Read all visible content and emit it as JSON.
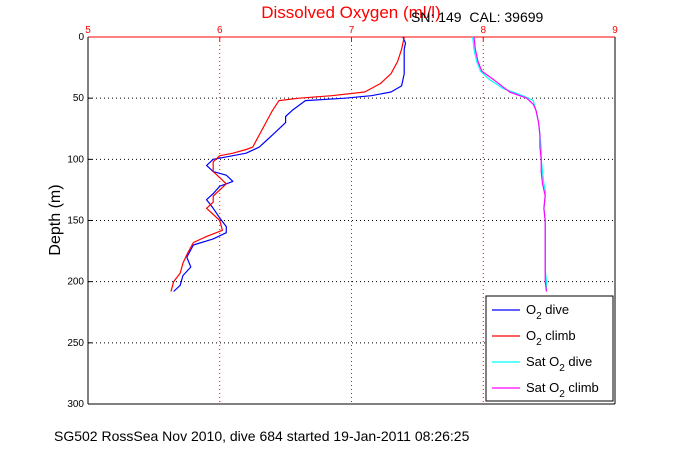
{
  "chart_data": {
    "type": "line",
    "title": "Dissolved Oxygen (ml/l)",
    "annotation": "SN: 149  CAL: 39699",
    "ylabel": "Depth (m)",
    "xlim": [
      5,
      9
    ],
    "ylim": [
      300,
      0
    ],
    "x_ticks": [
      "5",
      "6",
      "7",
      "8",
      "9"
    ],
    "y_ticks": [
      "0",
      "50",
      "100",
      "150",
      "200",
      "250",
      "300"
    ],
    "grid": true,
    "legend_position": "bottom-right",
    "colors": {
      "title": "#ff0000",
      "x_axis": "#ff0000",
      "grid": "#000000"
    },
    "series": [
      {
        "label_main": "O",
        "label_sub": "2",
        "label_suffix": " dive",
        "label_prefix": "",
        "color": "#0000ff",
        "points": [
          [
            7.39,
            0
          ],
          [
            7.41,
            5
          ],
          [
            7.4,
            10
          ],
          [
            7.4,
            20
          ],
          [
            7.4,
            30
          ],
          [
            7.38,
            40
          ],
          [
            7.3,
            45
          ],
          [
            7.15,
            48
          ],
          [
            6.95,
            50
          ],
          [
            6.65,
            52
          ],
          [
            6.55,
            60
          ],
          [
            6.5,
            65
          ],
          [
            6.5,
            70
          ],
          [
            6.45,
            75
          ],
          [
            6.4,
            80
          ],
          [
            6.35,
            85
          ],
          [
            6.3,
            90
          ],
          [
            6.2,
            95
          ],
          [
            6.1,
            97
          ],
          [
            5.95,
            100
          ],
          [
            5.9,
            105
          ],
          [
            5.95,
            110
          ],
          [
            6.05,
            113
          ],
          [
            6.1,
            118
          ],
          [
            6.0,
            122
          ],
          [
            5.95,
            128
          ],
          [
            5.9,
            133
          ],
          [
            5.95,
            140
          ],
          [
            6.0,
            148
          ],
          [
            6.05,
            155
          ],
          [
            6.05,
            160
          ],
          [
            5.95,
            165
          ],
          [
            5.8,
            170
          ],
          [
            5.75,
            180
          ],
          [
            5.78,
            188
          ],
          [
            5.72,
            195
          ],
          [
            5.7,
            203
          ],
          [
            5.65,
            208
          ]
        ]
      },
      {
        "label_main": "O",
        "label_sub": "2",
        "label_suffix": " climb",
        "label_prefix": "",
        "color": "#ff0000",
        "points": [
          [
            7.4,
            0
          ],
          [
            7.38,
            10
          ],
          [
            7.35,
            20
          ],
          [
            7.3,
            30
          ],
          [
            7.22,
            38
          ],
          [
            7.1,
            45
          ],
          [
            6.85,
            48
          ],
          [
            6.6,
            50
          ],
          [
            6.45,
            52
          ],
          [
            6.4,
            60
          ],
          [
            6.35,
            70
          ],
          [
            6.3,
            80
          ],
          [
            6.25,
            90
          ],
          [
            6.2,
            92
          ],
          [
            6.1,
            95
          ],
          [
            6.0,
            97
          ],
          [
            5.95,
            102
          ],
          [
            5.95,
            110
          ],
          [
            6.0,
            115
          ],
          [
            6.05,
            120
          ],
          [
            6.0,
            125
          ],
          [
            5.95,
            130
          ],
          [
            5.95,
            135
          ],
          [
            5.9,
            140
          ],
          [
            6.0,
            150
          ],
          [
            6.02,
            158
          ],
          [
            5.9,
            163
          ],
          [
            5.8,
            168
          ],
          [
            5.75,
            178
          ],
          [
            5.72,
            185
          ],
          [
            5.7,
            193
          ],
          [
            5.65,
            200
          ],
          [
            5.63,
            208
          ]
        ]
      },
      {
        "label_prefix": "Sat ",
        "label_main": "O",
        "label_sub": "2",
        "label_suffix": " dive",
        "color": "#00ffff",
        "points": [
          [
            7.92,
            0
          ],
          [
            7.93,
            10
          ],
          [
            7.95,
            20
          ],
          [
            7.98,
            28
          ],
          [
            8.05,
            35
          ],
          [
            8.15,
            42
          ],
          [
            8.3,
            48
          ],
          [
            8.38,
            52
          ],
          [
            8.4,
            60
          ],
          [
            8.42,
            70
          ],
          [
            8.43,
            80
          ],
          [
            8.44,
            90
          ],
          [
            8.44,
            100
          ],
          [
            8.45,
            110
          ],
          [
            8.46,
            120
          ],
          [
            8.47,
            125
          ],
          [
            8.47,
            130
          ],
          [
            8.46,
            140
          ],
          [
            8.47,
            150
          ],
          [
            8.47,
            160
          ],
          [
            8.47,
            170
          ],
          [
            8.47,
            180
          ],
          [
            8.47,
            190
          ],
          [
            8.48,
            200
          ],
          [
            8.48,
            208
          ]
        ]
      },
      {
        "label_prefix": "Sat ",
        "label_main": "O",
        "label_sub": "2",
        "label_suffix": " climb",
        "color": "#ff00ff",
        "points": [
          [
            7.93,
            0
          ],
          [
            7.94,
            10
          ],
          [
            7.96,
            20
          ],
          [
            7.99,
            28
          ],
          [
            8.08,
            35
          ],
          [
            8.2,
            45
          ],
          [
            8.33,
            50
          ],
          [
            8.38,
            55
          ],
          [
            8.4,
            60
          ],
          [
            8.42,
            70
          ],
          [
            8.43,
            80
          ],
          [
            8.43,
            90
          ],
          [
            8.44,
            100
          ],
          [
            8.44,
            110
          ],
          [
            8.45,
            120
          ],
          [
            8.46,
            125
          ],
          [
            8.47,
            130
          ],
          [
            8.46,
            140
          ],
          [
            8.47,
            150
          ],
          [
            8.47,
            160
          ],
          [
            8.47,
            170
          ],
          [
            8.47,
            180
          ],
          [
            8.47,
            190
          ],
          [
            8.47,
            200
          ],
          [
            8.48,
            208
          ]
        ]
      }
    ]
  },
  "footer": "SG502 RossSea Nov 2010, dive 684 started 19-Jan-2011 08:26:25"
}
